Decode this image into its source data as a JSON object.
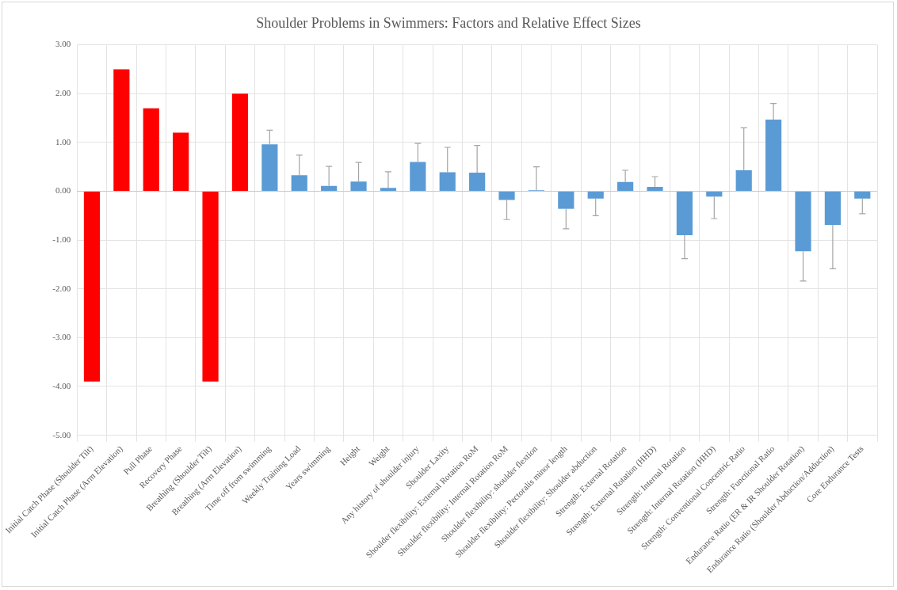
{
  "chart_data": {
    "type": "bar",
    "title": "Shoulder Problems in Swimmers: Factors and Relative Effect Sizes",
    "categories": [
      "Initial Catch Phase (Shoulder Tilt)",
      "Initial Catch Phase (Arm Elevation)",
      "Pull Phase",
      "Recovery Phase",
      "Breathing (Shoulder Tilt)",
      "Breathing (Arm Elevation)",
      "Time off from swimming",
      "Weekly Training Load",
      "Years swimming",
      "Height",
      "Weight",
      "Any history of shoulder injury",
      "Shoulder Laxity",
      "Shoulder flexibility: External Rotation RoM",
      "Shoulder flexibility: Internal Rotation RoM",
      "Shoulder flexibility: shoulder flextion",
      "Shoulder flexibility: Pectoralis minor length",
      "Shoulder flexibility: Shoulder abduction",
      "Strength: External Rotation",
      "Strength: External Rotation (HHD)",
      "Strength: Internal Rotation",
      "Strength: Internal Rotation (HHD)",
      "Strength: Conventional Concentric Ratio",
      "Strength: Functional Ratio",
      "Endurance Ratio (ER & IR Shoulder Rotation)",
      "Endurance Ratio (Shoulder Abduction/Adduction)",
      "Core Endurance Tests"
    ],
    "values": [
      -3.9,
      2.5,
      1.7,
      1.2,
      -3.9,
      2.0,
      0.96,
      0.33,
      0.11,
      0.2,
      0.07,
      0.6,
      0.39,
      0.38,
      -0.18,
      0.02,
      -0.36,
      -0.15,
      0.19,
      0.09,
      -0.9,
      -0.11,
      0.43,
      1.47,
      -1.23,
      -0.69,
      -0.15
    ],
    "colors": [
      "#ff0000",
      "#ff0000",
      "#ff0000",
      "#ff0000",
      "#ff0000",
      "#ff0000",
      "#5b9bd5",
      "#5b9bd5",
      "#5b9bd5",
      "#5b9bd5",
      "#5b9bd5",
      "#5b9bd5",
      "#5b9bd5",
      "#5b9bd5",
      "#5b9bd5",
      "#5b9bd5",
      "#5b9bd5",
      "#5b9bd5",
      "#5b9bd5",
      "#5b9bd5",
      "#5b9bd5",
      "#5b9bd5",
      "#5b9bd5",
      "#5b9bd5",
      "#5b9bd5",
      "#5b9bd5",
      "#5b9bd5"
    ],
    "errors": [
      null,
      null,
      null,
      null,
      null,
      null,
      [
        0.96,
        1.25
      ],
      [
        0.33,
        0.74
      ],
      [
        0.11,
        0.51
      ],
      [
        0.2,
        0.59
      ],
      [
        0.07,
        0.4
      ],
      [
        0.6,
        0.98
      ],
      [
        0.39,
        0.9
      ],
      [
        0.38,
        0.94
      ],
      [
        -0.58,
        -0.18
      ],
      [
        0.02,
        0.5
      ],
      [
        -0.77,
        -0.36
      ],
      [
        -0.5,
        -0.15
      ],
      [
        0.19,
        0.43
      ],
      [
        0.09,
        0.3
      ],
      [
        -1.38,
        -0.9
      ],
      [
        -0.56,
        -0.11
      ],
      [
        0.43,
        1.3
      ],
      [
        1.47,
        1.8
      ],
      [
        -1.84,
        -1.23
      ],
      [
        -1.59,
        -0.69
      ],
      [
        -0.46,
        -0.15
      ]
    ],
    "ylim": [
      -5,
      3
    ],
    "yticks": [
      {
        "value": -5,
        "label": "-5.00"
      },
      {
        "value": -4,
        "label": "-4.00"
      },
      {
        "value": -3,
        "label": "-3.00"
      },
      {
        "value": -2,
        "label": "-2.00"
      },
      {
        "value": -1,
        "label": "-1.00"
      },
      {
        "value": 0,
        "label": "0.00"
      },
      {
        "value": 1,
        "label": "1.00"
      },
      {
        "value": 2,
        "label": "2.00"
      },
      {
        "value": 3,
        "label": "3.00"
      }
    ],
    "grid": true
  }
}
